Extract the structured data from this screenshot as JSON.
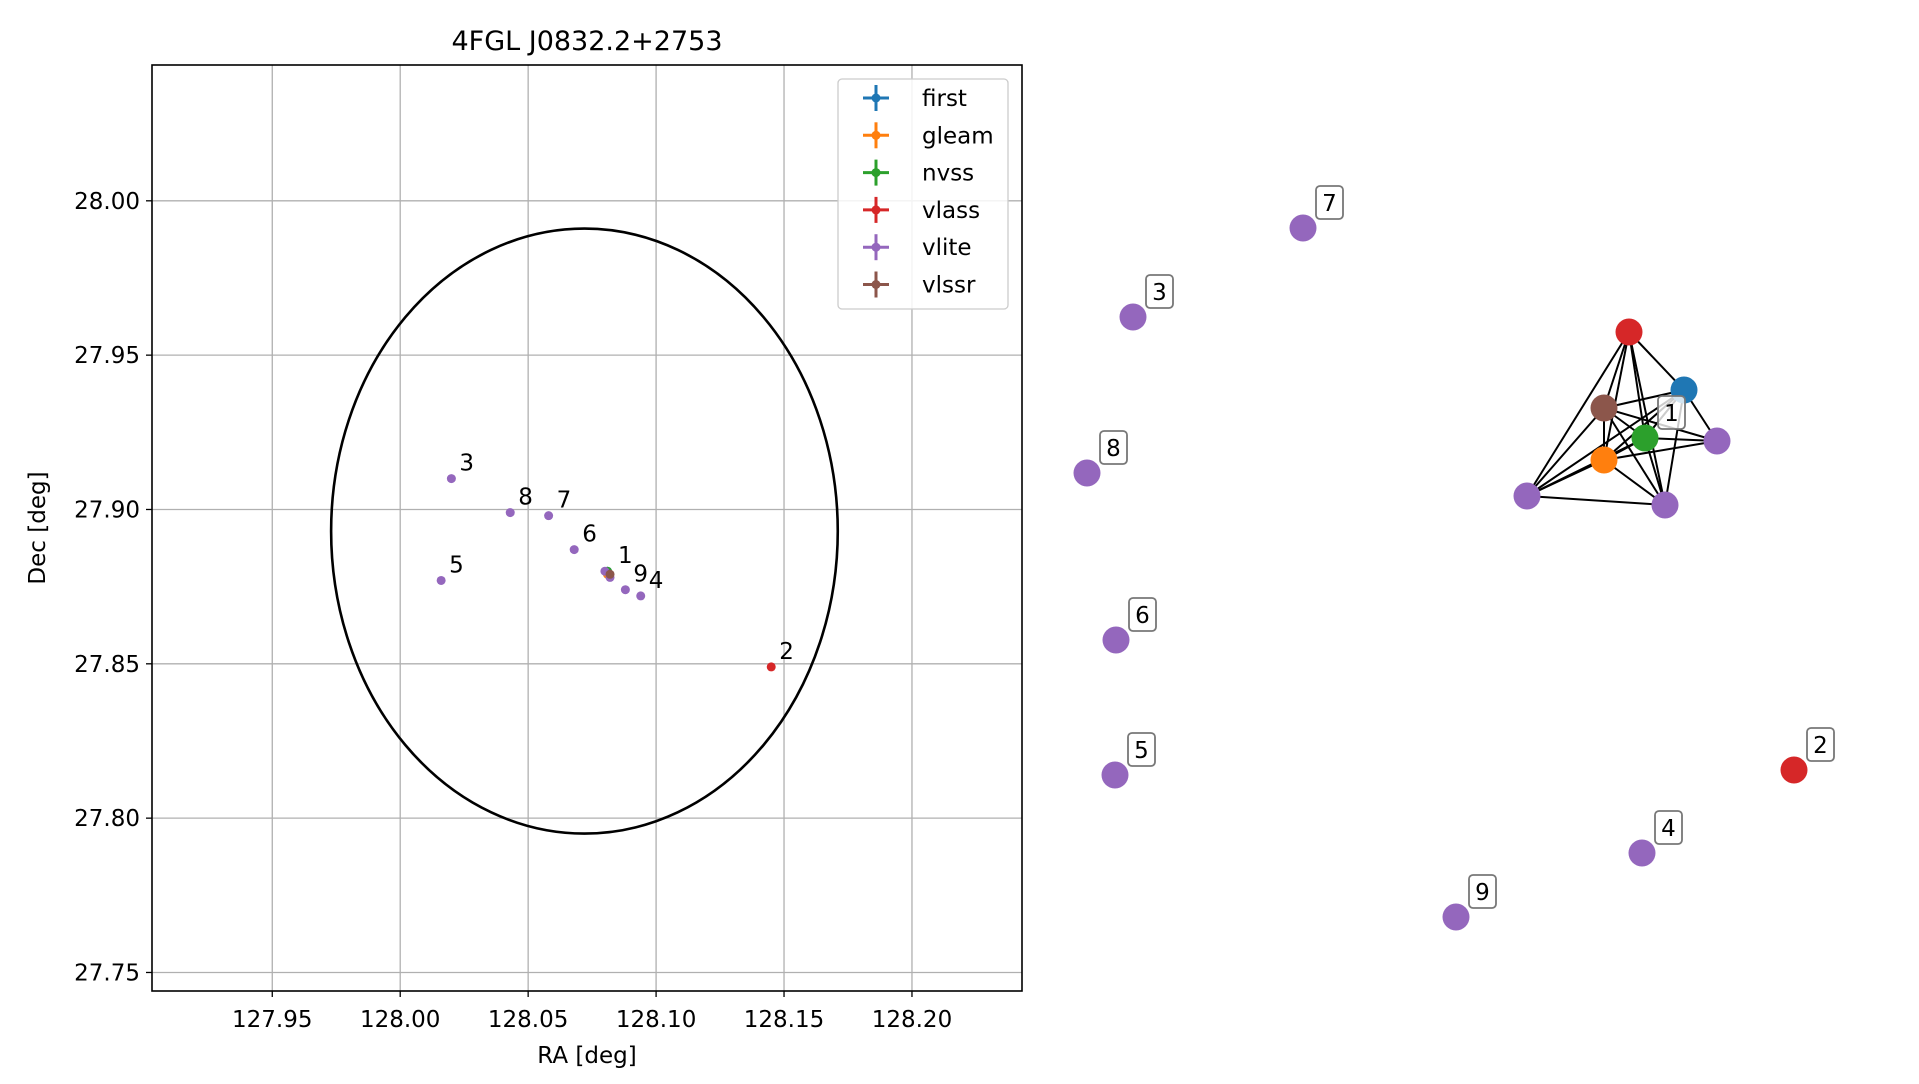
{
  "chart_data": [
    {
      "type": "scatter",
      "title": "4FGL J0832.2+2753",
      "xlabel": "RA [deg]",
      "ylabel": "Dec [deg]",
      "xlim": [
        127.903,
        128.243
      ],
      "ylim": [
        27.744,
        28.044
      ],
      "xticks": [
        127.95,
        128.0,
        128.05,
        128.1,
        128.15,
        128.2
      ],
      "xtick_labels": [
        "127.95",
        "128.00",
        "128.05",
        "128.10",
        "128.15",
        "128.20"
      ],
      "yticks": [
        27.75,
        27.8,
        27.85,
        27.9,
        27.95,
        28.0
      ],
      "ytick_labels": [
        "27.75",
        "27.80",
        "27.85",
        "27.90",
        "27.95",
        "28.00"
      ],
      "grid": true,
      "legend_position": "top-right",
      "series": [
        {
          "name": "first",
          "color": "#1f77b4",
          "points": [
            {
              "x": 128.081,
              "y": 27.88
            }
          ]
        },
        {
          "name": "gleam",
          "color": "#ff7f0e",
          "points": [
            {
              "x": 128.081,
              "y": 27.879
            }
          ]
        },
        {
          "name": "nvss",
          "color": "#2ca02c",
          "points": [
            {
              "x": 128.081,
              "y": 27.88
            }
          ]
        },
        {
          "name": "vlass",
          "color": "#d62728",
          "points": [
            {
              "x": 128.145,
              "y": 27.849
            }
          ]
        },
        {
          "name": "vlite",
          "color": "#9467bd",
          "points": [
            {
              "x": 128.02,
              "y": 27.91
            },
            {
              "x": 128.043,
              "y": 27.899
            },
            {
              "x": 128.058,
              "y": 27.898
            },
            {
              "x": 128.068,
              "y": 27.887
            },
            {
              "x": 128.016,
              "y": 27.877
            },
            {
              "x": 128.088,
              "y": 27.874
            },
            {
              "x": 128.094,
              "y": 27.872
            },
            {
              "x": 128.08,
              "y": 27.88
            },
            {
              "x": 128.082,
              "y": 27.878
            }
          ]
        },
        {
          "name": "vlssr",
          "color": "#8c564b",
          "points": [
            {
              "x": 128.082,
              "y": 27.879
            }
          ]
        }
      ],
      "point_labels": [
        {
          "text": "1",
          "x": 128.082,
          "y": 27.88
        },
        {
          "text": "2",
          "x": 128.145,
          "y": 27.849
        },
        {
          "text": "3",
          "x": 128.02,
          "y": 27.91
        },
        {
          "text": "4",
          "x": 128.094,
          "y": 27.872
        },
        {
          "text": "5",
          "x": 128.016,
          "y": 27.877
        },
        {
          "text": "6",
          "x": 128.068,
          "y": 27.887
        },
        {
          "text": "7",
          "x": 128.058,
          "y": 27.898
        },
        {
          "text": "8",
          "x": 128.043,
          "y": 27.899
        },
        {
          "text": "9",
          "x": 128.088,
          "y": 27.874
        }
      ],
      "ellipse": {
        "center": [
          128.072,
          27.893
        ],
        "ra_semi_axis": 0.099,
        "dec_semi_axis": 0.098,
        "color": "#000000"
      }
    },
    {
      "type": "network",
      "node_colors": {
        "first": "#1f77b4",
        "gleam": "#ff7f0e",
        "nvss": "#2ca02c",
        "vlass": "#d62728",
        "vlite": "#9467bd",
        "vlssr": "#8c564b"
      },
      "nodes": [
        {
          "id": "n_vlass",
          "kind": "vlass"
        },
        {
          "id": "n_first",
          "kind": "first"
        },
        {
          "id": "n_vlssr",
          "kind": "vlssr"
        },
        {
          "id": "n_nvss",
          "kind": "nvss",
          "label": "1"
        },
        {
          "id": "n_gleam",
          "kind": "gleam"
        },
        {
          "id": "n_vlite_a",
          "kind": "vlite"
        },
        {
          "id": "n_vlite_b",
          "kind": "vlite"
        },
        {
          "id": "n_vlite_c",
          "kind": "vlite"
        },
        {
          "id": "n2",
          "kind": "vlass",
          "label": "2"
        },
        {
          "id": "n3",
          "kind": "vlite",
          "label": "3"
        },
        {
          "id": "n4",
          "kind": "vlite",
          "label": "4"
        },
        {
          "id": "n5",
          "kind": "vlite",
          "label": "5"
        },
        {
          "id": "n6",
          "kind": "vlite",
          "label": "6"
        },
        {
          "id": "n7",
          "kind": "vlite",
          "label": "7"
        },
        {
          "id": "n8",
          "kind": "vlite",
          "label": "8"
        },
        {
          "id": "n9",
          "kind": "vlite",
          "label": "9"
        }
      ],
      "edges": [
        [
          "n_vlass",
          "n_first"
        ],
        [
          "n_vlass",
          "n_vlssr"
        ],
        [
          "n_vlass",
          "n_nvss"
        ],
        [
          "n_vlass",
          "n_gleam"
        ],
        [
          "n_vlass",
          "n_vlite_a"
        ],
        [
          "n_vlass",
          "n_vlite_b"
        ],
        [
          "n_first",
          "n_vlssr"
        ],
        [
          "n_first",
          "n_nvss"
        ],
        [
          "n_first",
          "n_gleam"
        ],
        [
          "n_first",
          "n_vlite_a"
        ],
        [
          "n_first",
          "n_vlite_b"
        ],
        [
          "n_first",
          "n_vlite_c"
        ],
        [
          "n_vlssr",
          "n_nvss"
        ],
        [
          "n_vlssr",
          "n_gleam"
        ],
        [
          "n_vlssr",
          "n_vlite_a"
        ],
        [
          "n_vlssr",
          "n_vlite_b"
        ],
        [
          "n_vlssr",
          "n_vlite_c"
        ],
        [
          "n_nvss",
          "n_gleam"
        ],
        [
          "n_nvss",
          "n_vlite_a"
        ],
        [
          "n_nvss",
          "n_vlite_b"
        ],
        [
          "n_nvss",
          "n_vlite_c"
        ],
        [
          "n_gleam",
          "n_vlite_a"
        ],
        [
          "n_gleam",
          "n_vlite_b"
        ],
        [
          "n_gleam",
          "n_vlite_c"
        ],
        [
          "n_vlite_a",
          "n_vlite_b"
        ]
      ]
    }
  ]
}
